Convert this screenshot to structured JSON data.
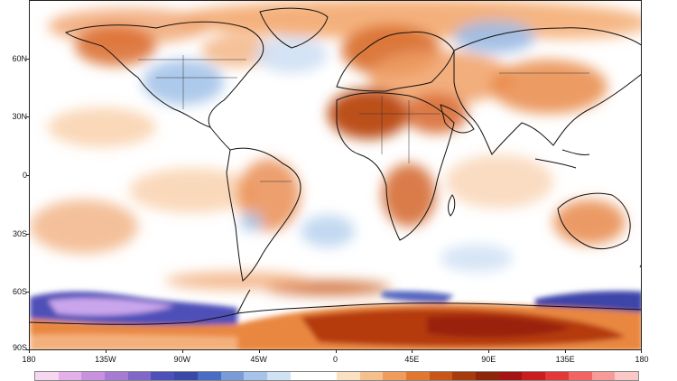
{
  "map": {
    "projection": "equirectangular",
    "lat_labels": [
      "60N",
      "30N",
      "0",
      "30S",
      "60S",
      "90S"
    ],
    "lon_labels": [
      "180",
      "135W",
      "90W",
      "45W",
      "0",
      "45E",
      "90E",
      "135E",
      "180"
    ],
    "anomaly_regions": [
      {
        "name": "north-africa-warm",
        "color": "#b8460f"
      },
      {
        "name": "antarctica-warm",
        "color": "#c0330c"
      },
      {
        "name": "southern-ocean-cold",
        "color": "#5a3fb5"
      },
      {
        "name": "north-america-cold",
        "color": "#a9c6ea"
      },
      {
        "name": "siberia-cold",
        "color": "#9cbce6"
      }
    ]
  },
  "colorbar": {
    "colors": [
      "#f7d6f2",
      "#e3b0ea",
      "#c992e0",
      "#a77ad4",
      "#7f66c8",
      "#4f4fb8",
      "#3a48a8",
      "#4b6cc4",
      "#7b9ad8",
      "#a8c3ea",
      "#d0e2f4",
      "#ffffff",
      "#ffffff",
      "#fbe0c2",
      "#f6c08e",
      "#f09c5c",
      "#e2772f",
      "#c9551a",
      "#a83b0e",
      "#8e260a",
      "#a31515",
      "#c81e1e",
      "#e23838",
      "#f26464",
      "#f89a9a",
      "#fcc7c7"
    ]
  }
}
